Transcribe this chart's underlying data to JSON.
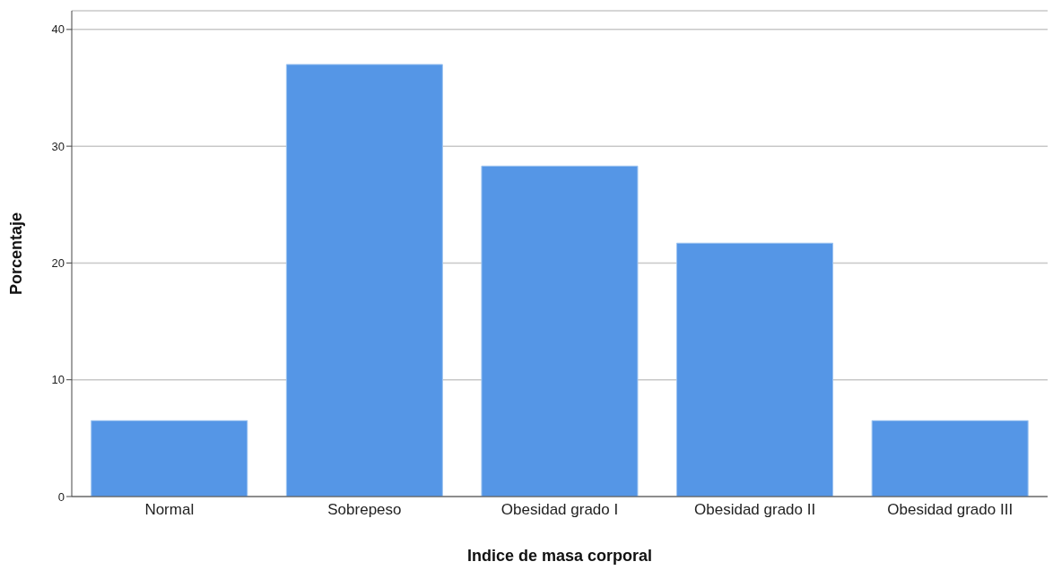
{
  "chart_data": {
    "type": "bar",
    "xlabel": "Indice de masa corporal",
    "ylabel": "Porcentaje",
    "categories": [
      "Normal",
      "Sobrepeso",
      "Obesidad grado I",
      "Obesidad grado II",
      "Obesidad grado III"
    ],
    "values": [
      6.5,
      37.0,
      28.3,
      21.7,
      6.5
    ],
    "color": "#5596e6",
    "ylim": [
      0,
      41.6
    ],
    "yticks": [
      0,
      10,
      20,
      30,
      40
    ],
    "grid": "y"
  }
}
